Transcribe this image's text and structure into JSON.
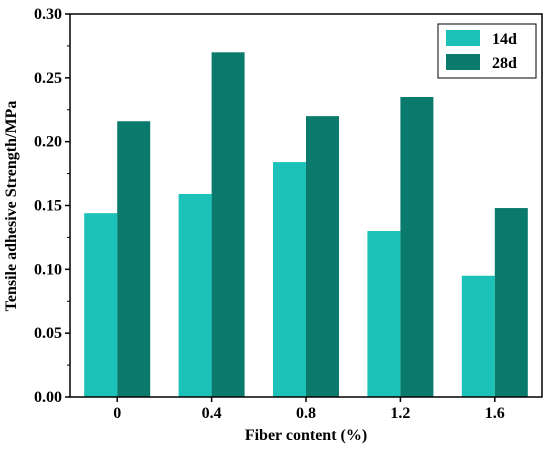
{
  "chart_data": {
    "type": "bar",
    "title": "",
    "xlabel": "Fiber content (%)",
    "ylabel": "Tensile adhesive Strength/MPa",
    "categories": [
      "0",
      "0.4",
      "0.8",
      "1.2",
      "1.6"
    ],
    "ylim": [
      0,
      0.3
    ],
    "yticks": [
      "0.00",
      "0.05",
      "0.10",
      "0.15",
      "0.20",
      "0.25",
      "0.30"
    ],
    "grid": false,
    "legend_position": "top-right",
    "series": [
      {
        "name": "14d",
        "color": "#1cc2b8",
        "values": [
          0.144,
          0.159,
          0.184,
          0.13,
          0.095
        ]
      },
      {
        "name": "28d",
        "color": "#0a7a6c",
        "values": [
          0.216,
          0.27,
          0.22,
          0.235,
          0.148
        ]
      }
    ]
  }
}
